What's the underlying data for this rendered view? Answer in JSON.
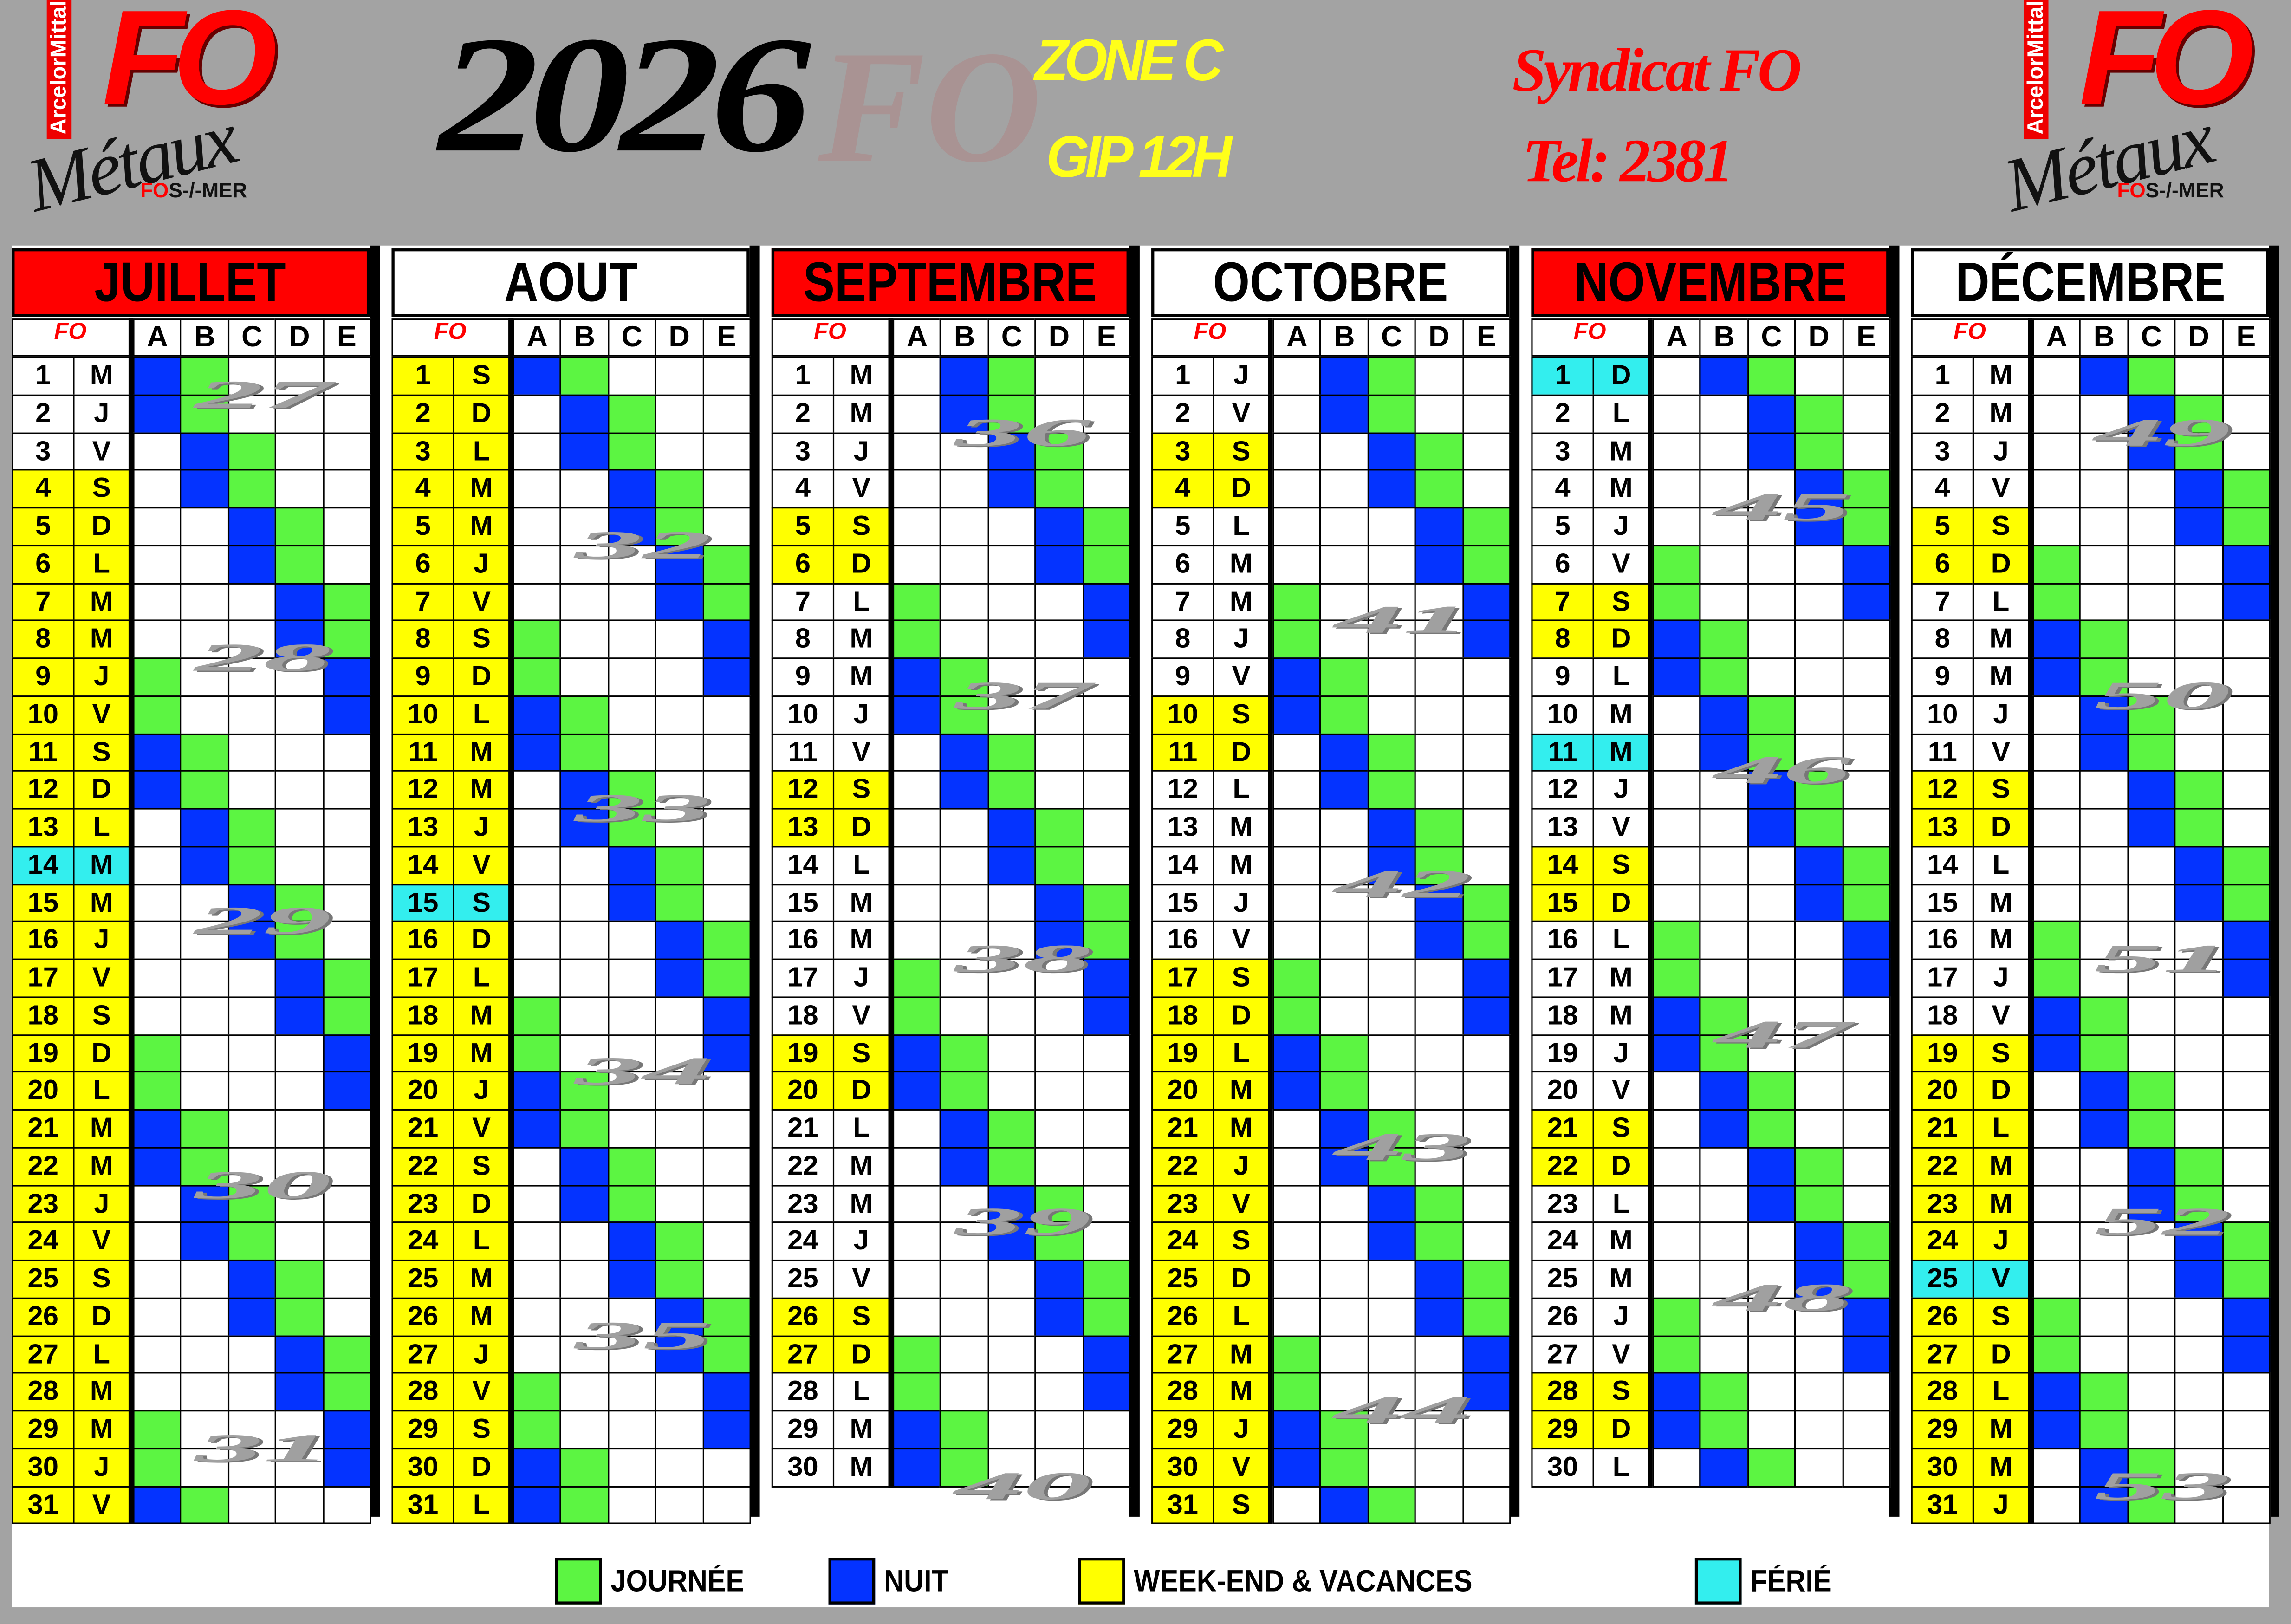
{
  "header": {
    "year": "2026",
    "zone": "ZONE C",
    "schedule": "GIP 12H",
    "union": "Syndicat FO",
    "phone": "Tel: 2381"
  },
  "logo": {
    "fo": "FO",
    "company": "ArcelorMittal",
    "name": "Métaux",
    "place_red": "FO",
    "place": "S-/-MER"
  },
  "crews": [
    "A",
    "B",
    "C",
    "D",
    "E"
  ],
  "colors": {
    "journee": "#5cf542",
    "nuit": "#0433ff",
    "weekend": "#ffff00",
    "ferie": "#33eeee",
    "title_red": "#ff0000",
    "title_white": "#ffffff"
  },
  "legend": [
    {
      "label": "JOURNÉE",
      "color": "#5cf542"
    },
    {
      "label": "NUIT",
      "color": "#0433ff"
    },
    {
      "label": "WEEK-END & VACANCES",
      "color": "#ffff00"
    },
    {
      "label": "FÉRIÉ",
      "color": "#33eeee"
    }
  ],
  "shift_codes": {
    "N": "nuit",
    "J": "journee",
    ".": "repos"
  },
  "months": [
    {
      "name": "JUILLET",
      "title_color": "red",
      "weeks": [
        "27",
        "28",
        "29",
        "30",
        "31"
      ],
      "days": [
        [
          "1",
          "M",
          "",
          "NJ..."
        ],
        [
          "2",
          "J",
          "",
          "NJ..."
        ],
        [
          "3",
          "V",
          "",
          ".NJ.."
        ],
        [
          "4",
          "S",
          "W",
          ".NJ.."
        ],
        [
          "5",
          "D",
          "W",
          "..NJ."
        ],
        [
          "6",
          "L",
          "W",
          "..NJ."
        ],
        [
          "7",
          "M",
          "W",
          "...NJ"
        ],
        [
          "8",
          "M",
          "W",
          "...NJ"
        ],
        [
          "9",
          "J",
          "W",
          "J...N"
        ],
        [
          "10",
          "V",
          "W",
          "J...N"
        ],
        [
          "11",
          "S",
          "W",
          "NJ..."
        ],
        [
          "12",
          "D",
          "W",
          "NJ..."
        ],
        [
          "13",
          "L",
          "W",
          ".NJ.."
        ],
        [
          "14",
          "M",
          "F",
          ".NJ.."
        ],
        [
          "15",
          "M",
          "W",
          "..NJ."
        ],
        [
          "16",
          "J",
          "W",
          "..NJ."
        ],
        [
          "17",
          "V",
          "W",
          "...NJ"
        ],
        [
          "18",
          "S",
          "W",
          "...NJ"
        ],
        [
          "19",
          "D",
          "W",
          "J...N"
        ],
        [
          "20",
          "L",
          "W",
          "J...N"
        ],
        [
          "21",
          "M",
          "W",
          "NJ..."
        ],
        [
          "22",
          "M",
          "W",
          "NJ..."
        ],
        [
          "23",
          "J",
          "W",
          ".NJ.."
        ],
        [
          "24",
          "V",
          "W",
          ".NJ.."
        ],
        [
          "25",
          "S",
          "W",
          "..NJ."
        ],
        [
          "26",
          "D",
          "W",
          "..NJ."
        ],
        [
          "27",
          "L",
          "W",
          "...NJ"
        ],
        [
          "28",
          "M",
          "W",
          "...NJ"
        ],
        [
          "29",
          "M",
          "W",
          "J...N"
        ],
        [
          "30",
          "J",
          "W",
          "J...N"
        ],
        [
          "31",
          "V",
          "W",
          "NJ..."
        ]
      ]
    },
    {
      "name": "AOUT",
      "title_color": "white",
      "weeks": [
        "32",
        "33",
        "34",
        "35"
      ],
      "days": [
        [
          "1",
          "S",
          "W",
          "NJ..."
        ],
        [
          "2",
          "D",
          "W",
          ".NJ.."
        ],
        [
          "3",
          "L",
          "W",
          ".NJ.."
        ],
        [
          "4",
          "M",
          "W",
          "..NJ."
        ],
        [
          "5",
          "M",
          "W",
          "..NJ."
        ],
        [
          "6",
          "J",
          "W",
          "...NJ"
        ],
        [
          "7",
          "V",
          "W",
          "...NJ"
        ],
        [
          "8",
          "S",
          "W",
          "J...N"
        ],
        [
          "9",
          "D",
          "W",
          "J...N"
        ],
        [
          "10",
          "L",
          "W",
          "NJ..."
        ],
        [
          "11",
          "M",
          "W",
          "NJ..."
        ],
        [
          "12",
          "M",
          "W",
          ".NJ.."
        ],
        [
          "13",
          "J",
          "W",
          ".NJ.."
        ],
        [
          "14",
          "V",
          "W",
          "..NJ."
        ],
        [
          "15",
          "S",
          "F",
          "..NJ."
        ],
        [
          "16",
          "D",
          "W",
          "...NJ"
        ],
        [
          "17",
          "L",
          "W",
          "...NJ"
        ],
        [
          "18",
          "M",
          "W",
          "J...N"
        ],
        [
          "19",
          "M",
          "W",
          "J...N"
        ],
        [
          "20",
          "J",
          "W",
          "NJ..."
        ],
        [
          "21",
          "V",
          "W",
          "NJ..."
        ],
        [
          "22",
          "S",
          "W",
          ".NJ.."
        ],
        [
          "23",
          "D",
          "W",
          ".NJ.."
        ],
        [
          "24",
          "L",
          "W",
          "..NJ."
        ],
        [
          "25",
          "M",
          "W",
          "..NJ."
        ],
        [
          "26",
          "M",
          "W",
          "...NJ"
        ],
        [
          "27",
          "J",
          "W",
          "...NJ"
        ],
        [
          "28",
          "V",
          "W",
          "J...N"
        ],
        [
          "29",
          "S",
          "W",
          "J...N"
        ],
        [
          "30",
          "D",
          "W",
          "NJ..."
        ],
        [
          "31",
          "L",
          "W",
          "NJ..."
        ]
      ]
    },
    {
      "name": "SEPTEMBRE",
      "title_color": "red",
      "weeks": [
        "36",
        "37",
        "38",
        "39",
        "40"
      ],
      "days": [
        [
          "1",
          "M",
          "",
          ".NJ.."
        ],
        [
          "2",
          "M",
          "",
          ".NJ.."
        ],
        [
          "3",
          "J",
          "",
          "..NJ."
        ],
        [
          "4",
          "V",
          "",
          "..NJ."
        ],
        [
          "5",
          "S",
          "W",
          "...NJ"
        ],
        [
          "6",
          "D",
          "W",
          "...NJ"
        ],
        [
          "7",
          "L",
          "",
          "J...N"
        ],
        [
          "8",
          "M",
          "",
          "J...N"
        ],
        [
          "9",
          "M",
          "",
          "NJ..."
        ],
        [
          "10",
          "J",
          "",
          "NJ..."
        ],
        [
          "11",
          "V",
          "",
          ".NJ.."
        ],
        [
          "12",
          "S",
          "W",
          ".NJ.."
        ],
        [
          "13",
          "D",
          "W",
          "..NJ."
        ],
        [
          "14",
          "L",
          "",
          "..NJ."
        ],
        [
          "15",
          "M",
          "",
          "...NJ"
        ],
        [
          "16",
          "M",
          "",
          "...NJ"
        ],
        [
          "17",
          "J",
          "",
          "J...N"
        ],
        [
          "18",
          "V",
          "",
          "J...N"
        ],
        [
          "19",
          "S",
          "W",
          "NJ..."
        ],
        [
          "20",
          "D",
          "W",
          "NJ..."
        ],
        [
          "21",
          "L",
          "",
          ".NJ.."
        ],
        [
          "22",
          "M",
          "",
          ".NJ.."
        ],
        [
          "23",
          "M",
          "",
          "..NJ."
        ],
        [
          "24",
          "J",
          "",
          "..NJ."
        ],
        [
          "25",
          "V",
          "",
          "...NJ"
        ],
        [
          "26",
          "S",
          "W",
          "...NJ"
        ],
        [
          "27",
          "D",
          "W",
          "J...N"
        ],
        [
          "28",
          "L",
          "",
          "J...N"
        ],
        [
          "29",
          "M",
          "",
          "NJ..."
        ],
        [
          "30",
          "M",
          "",
          "NJ..."
        ]
      ]
    },
    {
      "name": "OCTOBRE",
      "title_color": "white",
      "weeks": [
        "41",
        "42",
        "43",
        "44"
      ],
      "days": [
        [
          "1",
          "J",
          "",
          ".NJ.."
        ],
        [
          "2",
          "V",
          "",
          ".NJ.."
        ],
        [
          "3",
          "S",
          "W",
          "..NJ."
        ],
        [
          "4",
          "D",
          "W",
          "..NJ."
        ],
        [
          "5",
          "L",
          "",
          "...NJ"
        ],
        [
          "6",
          "M",
          "",
          "...NJ"
        ],
        [
          "7",
          "M",
          "",
          "J...N"
        ],
        [
          "8",
          "J",
          "",
          "J...N"
        ],
        [
          "9",
          "V",
          "",
          "NJ..."
        ],
        [
          "10",
          "S",
          "W",
          "NJ..."
        ],
        [
          "11",
          "D",
          "W",
          ".NJ.."
        ],
        [
          "12",
          "L",
          "",
          ".NJ.."
        ],
        [
          "13",
          "M",
          "",
          "..NJ."
        ],
        [
          "14",
          "M",
          "",
          "..NJ."
        ],
        [
          "15",
          "J",
          "",
          "...NJ"
        ],
        [
          "16",
          "V",
          "",
          "...NJ"
        ],
        [
          "17",
          "S",
          "W",
          "J...N"
        ],
        [
          "18",
          "D",
          "W",
          "J...N"
        ],
        [
          "19",
          "L",
          "W",
          "NJ..."
        ],
        [
          "20",
          "M",
          "W",
          "NJ..."
        ],
        [
          "21",
          "M",
          "W",
          ".NJ.."
        ],
        [
          "22",
          "J",
          "W",
          ".NJ.."
        ],
        [
          "23",
          "V",
          "W",
          "..NJ."
        ],
        [
          "24",
          "S",
          "W",
          "..NJ."
        ],
        [
          "25",
          "D",
          "W",
          "...NJ"
        ],
        [
          "26",
          "L",
          "W",
          "...NJ"
        ],
        [
          "27",
          "M",
          "W",
          "J...N"
        ],
        [
          "28",
          "M",
          "W",
          "J...N"
        ],
        [
          "29",
          "J",
          "W",
          "NJ..."
        ],
        [
          "30",
          "V",
          "W",
          "NJ..."
        ],
        [
          "31",
          "S",
          "W",
          ".NJ.."
        ]
      ]
    },
    {
      "name": "NOVEMBRE",
      "title_color": "red",
      "weeks": [
        "45",
        "46",
        "47",
        "48"
      ],
      "days": [
        [
          "1",
          "D",
          "F",
          ".NJ.."
        ],
        [
          "2",
          "L",
          "",
          "..NJ."
        ],
        [
          "3",
          "M",
          "",
          "..NJ."
        ],
        [
          "4",
          "M",
          "",
          "...NJ"
        ],
        [
          "5",
          "J",
          "",
          "...NJ"
        ],
        [
          "6",
          "V",
          "",
          "J...N"
        ],
        [
          "7",
          "S",
          "W",
          "J...N"
        ],
        [
          "8",
          "D",
          "W",
          "NJ..."
        ],
        [
          "9",
          "L",
          "",
          "NJ..."
        ],
        [
          "10",
          "M",
          "",
          ".NJ.."
        ],
        [
          "11",
          "M",
          "F",
          ".NJ.."
        ],
        [
          "12",
          "J",
          "",
          "..NJ."
        ],
        [
          "13",
          "V",
          "",
          "..NJ."
        ],
        [
          "14",
          "S",
          "W",
          "...NJ"
        ],
        [
          "15",
          "D",
          "W",
          "...NJ"
        ],
        [
          "16",
          "L",
          "",
          "J...N"
        ],
        [
          "17",
          "M",
          "",
          "J...N"
        ],
        [
          "18",
          "M",
          "",
          "NJ..."
        ],
        [
          "19",
          "J",
          "",
          "NJ..."
        ],
        [
          "20",
          "V",
          "",
          ".NJ.."
        ],
        [
          "21",
          "S",
          "W",
          ".NJ.."
        ],
        [
          "22",
          "D",
          "W",
          "..NJ."
        ],
        [
          "23",
          "L",
          "",
          "..NJ."
        ],
        [
          "24",
          "M",
          "",
          "...NJ"
        ],
        [
          "25",
          "M",
          "",
          "...NJ"
        ],
        [
          "26",
          "J",
          "",
          "J...N"
        ],
        [
          "27",
          "V",
          "",
          "J...N"
        ],
        [
          "28",
          "S",
          "W",
          "NJ..."
        ],
        [
          "29",
          "D",
          "W",
          "NJ..."
        ],
        [
          "30",
          "L",
          "",
          ".NJ.."
        ]
      ]
    },
    {
      "name": "DÉCEMBRE",
      "title_color": "white",
      "weeks": [
        "49",
        "50",
        "51",
        "52",
        "53"
      ],
      "days": [
        [
          "1",
          "M",
          "",
          ".NJ.."
        ],
        [
          "2",
          "M",
          "",
          "..NJ."
        ],
        [
          "3",
          "J",
          "",
          "..NJ."
        ],
        [
          "4",
          "V",
          "",
          "...NJ"
        ],
        [
          "5",
          "S",
          "W",
          "...NJ"
        ],
        [
          "6",
          "D",
          "W",
          "J...N"
        ],
        [
          "7",
          "L",
          "",
          "J...N"
        ],
        [
          "8",
          "M",
          "",
          "NJ..."
        ],
        [
          "9",
          "M",
          "",
          "NJ..."
        ],
        [
          "10",
          "J",
          "",
          ".NJ.."
        ],
        [
          "11",
          "V",
          "",
          ".NJ.."
        ],
        [
          "12",
          "S",
          "W",
          "..NJ."
        ],
        [
          "13",
          "D",
          "W",
          "..NJ."
        ],
        [
          "14",
          "L",
          "",
          "...NJ"
        ],
        [
          "15",
          "M",
          "",
          "...NJ"
        ],
        [
          "16",
          "M",
          "",
          "J...N"
        ],
        [
          "17",
          "J",
          "",
          "J...N"
        ],
        [
          "18",
          "V",
          "",
          "NJ..."
        ],
        [
          "19",
          "S",
          "W",
          "NJ..."
        ],
        [
          "20",
          "D",
          "W",
          ".NJ.."
        ],
        [
          "21",
          "L",
          "W",
          ".NJ.."
        ],
        [
          "22",
          "M",
          "W",
          "..NJ."
        ],
        [
          "23",
          "M",
          "W",
          "..NJ."
        ],
        [
          "24",
          "J",
          "W",
          "...NJ"
        ],
        [
          "25",
          "V",
          "F",
          "...NJ"
        ],
        [
          "26",
          "S",
          "W",
          "J...N"
        ],
        [
          "27",
          "D",
          "W",
          "J...N"
        ],
        [
          "28",
          "L",
          "W",
          "NJ..."
        ],
        [
          "29",
          "M",
          "W",
          "NJ..."
        ],
        [
          "30",
          "M",
          "W",
          ".NJ.."
        ],
        [
          "31",
          "J",
          "W",
          ".NJ.."
        ]
      ]
    }
  ]
}
